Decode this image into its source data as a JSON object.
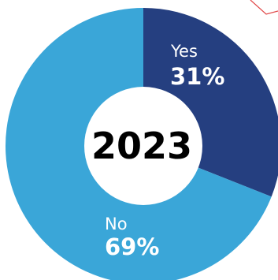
{
  "chart_data": {
    "type": "pie",
    "center_label": "2023",
    "slices": [
      {
        "name": "Yes",
        "value": 31,
        "label": "31%",
        "color": "#253f80"
      },
      {
        "name": "No",
        "value": 69,
        "label": "69%",
        "color": "#3aa6d8"
      }
    ]
  },
  "colors": {
    "center_fill": "#ffffff",
    "corner_accent": "#e04646"
  }
}
